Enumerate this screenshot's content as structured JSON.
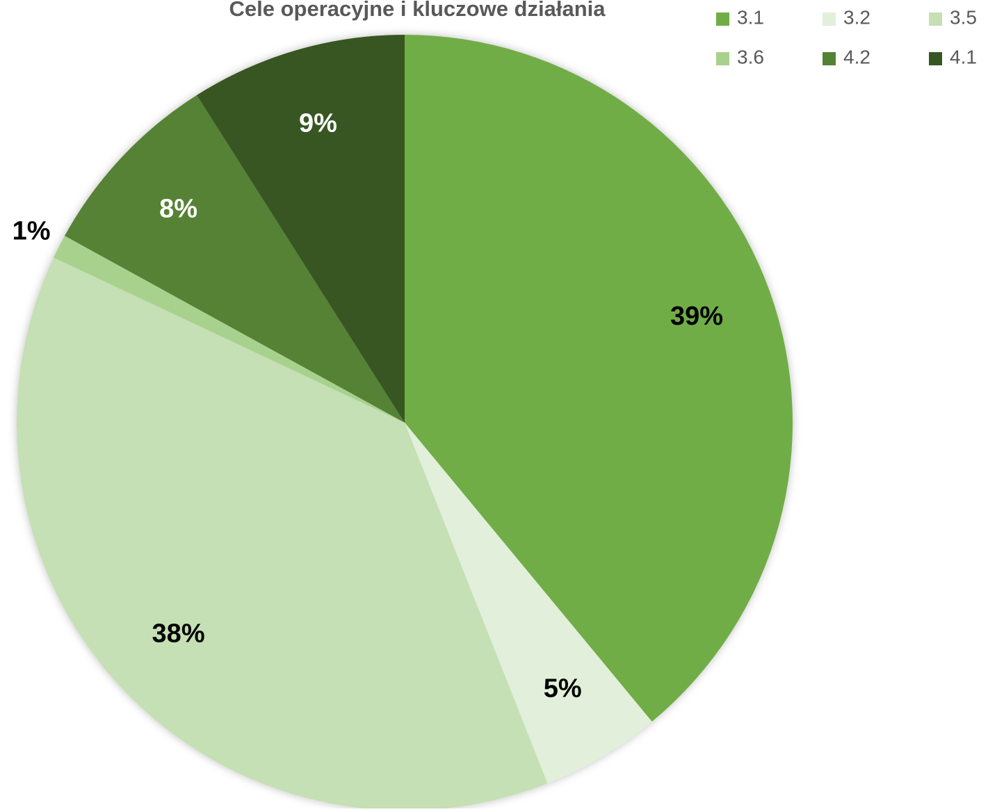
{
  "chart_data": {
    "type": "pie",
    "title": "Cele operacyjne i kluczowe działania",
    "categories": [
      "3.1",
      "3.2",
      "3.5",
      "3.6",
      "4.2",
      "4.1"
    ],
    "values": [
      39,
      5,
      38,
      1,
      8,
      9
    ],
    "value_labels": [
      "39%",
      "5%",
      "38%",
      "1%",
      "8%",
      "9%"
    ],
    "colors": [
      "#70ad47",
      "#e2efda",
      "#c5e0b4",
      "#a9d18e",
      "#548235",
      "#375623"
    ],
    "legend": "top-right"
  }
}
